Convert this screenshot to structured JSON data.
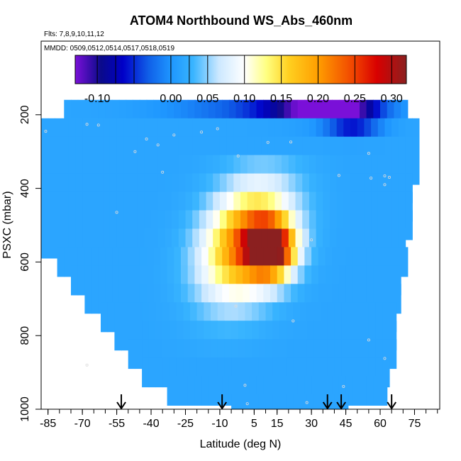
{
  "chart_data": {
    "type": "heatmap",
    "title": "ATOM4 Northbound WS_Abs_460nm",
    "flights_note": "Flts: 7,8,9,10,11,12",
    "dates_note": "MMDD: 0509,0512,0514,0517,0518,0519",
    "xlabel": "Latitude (deg N)",
    "ylabel": "PSXC (mbar)",
    "xlim": [
      -88,
      86
    ],
    "ylim": [
      1000,
      0
    ],
    "x_ticks": [
      -85,
      -70,
      -55,
      -40,
      -25,
      -10,
      5,
      15,
      30,
      45,
      60,
      75
    ],
    "x_minor_step": 5,
    "y_ticks": [
      200,
      400,
      600,
      800,
      1000
    ],
    "colorbar": {
      "range": [
        -0.13,
        0.32
      ],
      "ticks": [
        -0.1,
        0.0,
        0.05,
        0.1,
        0.15,
        0.2,
        0.25,
        0.3
      ],
      "tick_labels": [
        "-0.10",
        "0.00",
        "0.05",
        "0.10",
        "0.15",
        "0.20",
        "0.25",
        "0.30"
      ],
      "line_ticks": [
        -0.1,
        -0.075,
        -0.05,
        0.0,
        0.025,
        0.05,
        0.1,
        0.15,
        0.2,
        0.25,
        0.3
      ],
      "stops": [
        {
          "v": -0.13,
          "c": "#7a10d8"
        },
        {
          "v": -0.095,
          "c": "#0a0a8a"
        },
        {
          "v": -0.065,
          "c": "#0000c8"
        },
        {
          "v": -0.03,
          "c": "#1060e8"
        },
        {
          "v": 0.0,
          "c": "#1e96ff"
        },
        {
          "v": 0.03,
          "c": "#38b4ff"
        },
        {
          "v": 0.065,
          "c": "#cce8ff"
        },
        {
          "v": 0.1,
          "c": "#ffffff"
        },
        {
          "v": 0.13,
          "c": "#ffff80"
        },
        {
          "v": 0.16,
          "c": "#ffd020"
        },
        {
          "v": 0.2,
          "c": "#ff9e00"
        },
        {
          "v": 0.25,
          "c": "#f04000"
        },
        {
          "v": 0.28,
          "c": "#d80000"
        },
        {
          "v": 0.32,
          "c": "#8b2020"
        }
      ]
    },
    "pressure_bins": [
      {
        "p": 200,
        "lat": [
          -78,
          72
        ]
      },
      {
        "p": 250,
        "lat": [
          -88,
          77
        ]
      },
      {
        "p": 300,
        "lat": [
          -88,
          76
        ]
      },
      {
        "p": 350,
        "lat": [
          -88,
          75
        ]
      },
      {
        "p": 400,
        "lat": [
          -88,
          74
        ]
      },
      {
        "p": 450,
        "lat": [
          -88,
          73
        ]
      },
      {
        "p": 500,
        "lat": [
          -88,
          72
        ]
      },
      {
        "p": 550,
        "lat": [
          -88,
          71
        ]
      },
      {
        "p": 600,
        "lat": [
          -81,
          70
        ]
      },
      {
        "p": 650,
        "lat": [
          -75,
          69
        ]
      },
      {
        "p": 700,
        "lat": [
          -69,
          68
        ]
      },
      {
        "p": 750,
        "lat": [
          -62,
          67
        ]
      },
      {
        "p": 800,
        "lat": [
          -56,
          66
        ]
      },
      {
        "p": 850,
        "lat": [
          -50,
          65
        ]
      },
      {
        "p": 900,
        "lat": [
          -44,
          63
        ]
      },
      {
        "p": 950,
        "lat": [
          -33,
          62
        ]
      },
      {
        "p": 1000,
        "lat": [
          -5,
          44
        ]
      }
    ],
    "field_features": [
      {
        "name": "upper-trop low",
        "lat": 35,
        "p": 205,
        "value": -0.12,
        "sx": 22,
        "sy": 25
      },
      {
        "name": "upper-trop low east",
        "lat": 48,
        "p": 230,
        "value": -0.08,
        "sx": 12,
        "sy": 35
      },
      {
        "name": "mid-trop plume",
        "lat": 12,
        "p": 580,
        "value": 0.3,
        "sx": 10,
        "sy": 70
      }
    ],
    "background_value": 0.015,
    "flight_markers_lat": [
      -53,
      -9,
      37,
      43,
      65
    ]
  }
}
